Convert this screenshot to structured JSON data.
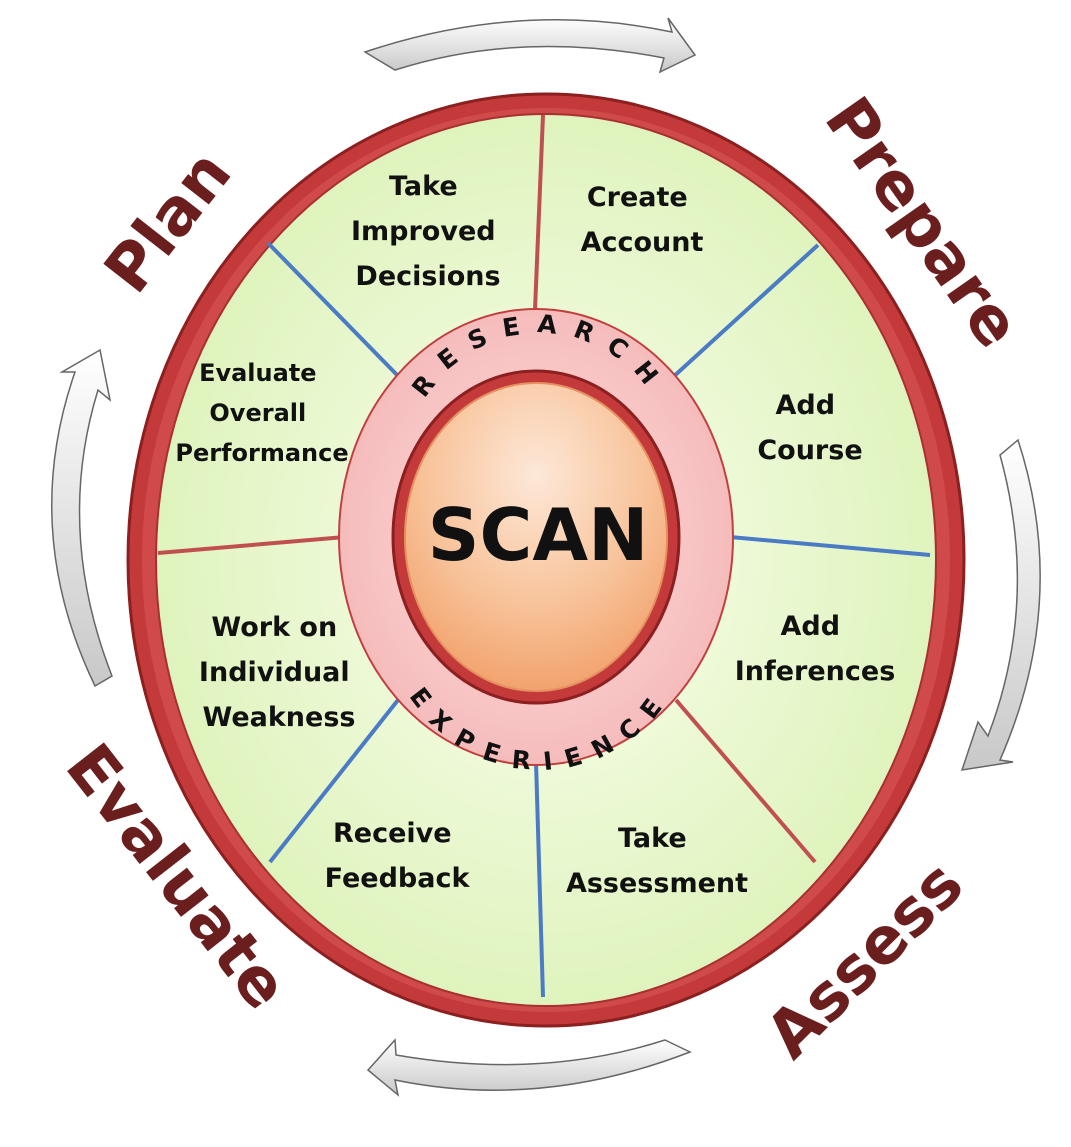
{
  "center": {
    "label": "SCAN"
  },
  "ring": {
    "top_word": "RESEARCH",
    "bottom_word": "EXPERIENCE"
  },
  "segments": [
    {
      "id": "take-improved-decisions",
      "lines": [
        "Take",
        "Improved",
        "Decisions"
      ]
    },
    {
      "id": "create-account",
      "lines": [
        "Create",
        "Account"
      ]
    },
    {
      "id": "add-course",
      "lines": [
        "Add",
        "Course"
      ]
    },
    {
      "id": "add-inferences",
      "lines": [
        "Add",
        "Inferences"
      ]
    },
    {
      "id": "take-assessment",
      "lines": [
        "Take",
        "Assessment"
      ]
    },
    {
      "id": "receive-feedback",
      "lines": [
        "Receive",
        "Feedback"
      ]
    },
    {
      "id": "work-on-individual-weakness",
      "lines": [
        "Work on",
        "Individual",
        "Weakness"
      ]
    },
    {
      "id": "evaluate-overall-performance",
      "lines": [
        "Evaluate",
        "Overall",
        "Performance"
      ]
    }
  ],
  "phases": {
    "plan": "Plan",
    "prepare": "Prepare",
    "assess": "Assess",
    "evaluate": "Evaluate"
  },
  "colors": {
    "outer_ring": "#c43a3a",
    "segment_fill": "#e6f7c8",
    "divider_blue": "#4a7bc4",
    "divider_red": "#c05050",
    "inner_ring": "#f7c4c4",
    "center_fill": "#f6b485",
    "phase_text": "#6b1e1e",
    "arrow": "#d8d8d8"
  }
}
